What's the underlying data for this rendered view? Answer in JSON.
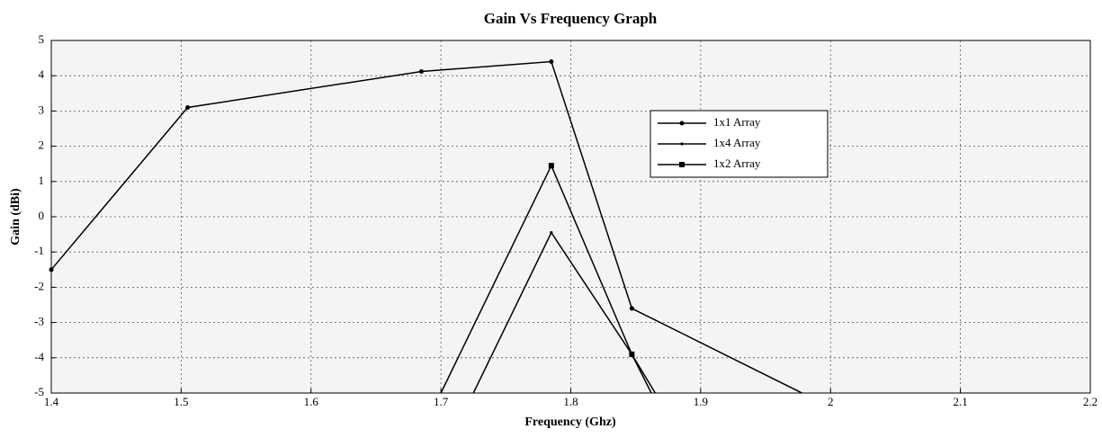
{
  "chart_data": {
    "type": "line",
    "title": "Gain Vs Frequency Graph",
    "x_label": "Frequency (Ghz)",
    "y_label": "Gain (dBi)",
    "xlim": [
      1.4,
      2.2
    ],
    "xticks": [
      1.4,
      1.5,
      1.6,
      1.7,
      1.8,
      1.9,
      2,
      2.1,
      2.2
    ],
    "ylim": [
      -5,
      5
    ],
    "yticks": [
      -5,
      -4,
      -3,
      -2,
      -1,
      0,
      1,
      2,
      3,
      4,
      5
    ],
    "grid": true,
    "series": [
      {
        "name": "1x1 Array",
        "color": "#000000",
        "marker": "dot",
        "x": [
          1.4,
          1.505,
          1.685,
          1.785,
          1.847,
          1.978
        ],
        "values": [
          -1.5,
          3.1,
          4.12,
          4.4,
          -2.6,
          -5
        ]
      },
      {
        "name": "1x4 Array",
        "color": "#000000",
        "marker": "small-dot",
        "x": [
          1.725,
          1.785,
          1.847,
          1.865
        ],
        "values": [
          -5,
          -0.45,
          -3.9,
          -5
        ]
      },
      {
        "name": "1x2 Array",
        "color": "#000000",
        "marker": "square",
        "x": [
          1.7,
          1.785,
          1.847,
          1.862
        ],
        "values": [
          -5,
          1.45,
          -3.9,
          -5
        ]
      }
    ]
  }
}
